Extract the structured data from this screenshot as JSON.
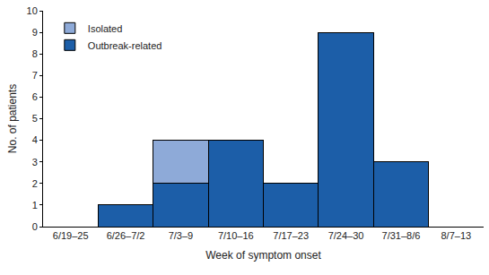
{
  "chart_data": {
    "type": "bar",
    "stacked": true,
    "x_label": "Week of symptom onset",
    "y_label": "No. of patients",
    "categories": [
      "6/19–25",
      "6/26–7/2",
      "7/3–9",
      "7/10–16",
      "7/17–23",
      "7/24–30",
      "7/31–8/6",
      "8/7–13"
    ],
    "series": [
      {
        "name": "Outbreak-related",
        "color": "#1c5ea8",
        "values": [
          0,
          1,
          2,
          4,
          2,
          9,
          3,
          0
        ]
      },
      {
        "name": "Isolated",
        "color": "#8eaad8",
        "values": [
          0,
          0,
          2,
          0,
          0,
          0,
          0,
          0
        ]
      }
    ],
    "ylim": [
      0,
      10
    ],
    "yticks": [
      0,
      1,
      2,
      3,
      4,
      5,
      6,
      7,
      8,
      9,
      10
    ],
    "grid": false,
    "legend": "top-left"
  }
}
